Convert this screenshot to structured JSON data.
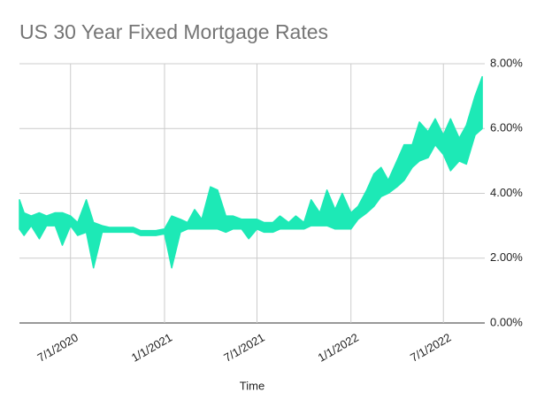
{
  "chart_data": {
    "type": "range-area",
    "title": "US 30 Year Fixed Mortgage Rates",
    "x_label": "Time",
    "x": [
      "2020-03-23",
      "2020-04-01",
      "2020-04-15",
      "2020-05-01",
      "2020-05-15",
      "2020-06-01",
      "2020-06-15",
      "2020-07-01",
      "2020-07-15",
      "2020-08-01",
      "2020-08-15",
      "2020-09-01",
      "2020-09-15",
      "2020-10-01",
      "2020-10-15",
      "2020-11-01",
      "2020-11-15",
      "2020-12-01",
      "2020-12-15",
      "2021-01-01",
      "2021-01-15",
      "2021-02-01",
      "2021-02-15",
      "2021-03-01",
      "2021-03-15",
      "2021-04-01",
      "2021-04-15",
      "2021-05-01",
      "2021-05-15",
      "2021-06-01",
      "2021-06-15",
      "2021-07-01",
      "2021-07-15",
      "2021-08-01",
      "2021-08-15",
      "2021-09-01",
      "2021-09-15",
      "2021-10-01",
      "2021-10-15",
      "2021-11-01",
      "2021-11-15",
      "2021-12-01",
      "2021-12-15",
      "2022-01-01",
      "2022-01-15",
      "2022-02-01",
      "2022-02-15",
      "2022-03-01",
      "2022-03-15",
      "2022-04-01",
      "2022-04-15",
      "2022-05-01",
      "2022-05-15",
      "2022-06-01",
      "2022-06-15",
      "2022-07-01",
      "2022-07-15",
      "2022-08-01",
      "2022-08-15",
      "2022-09-01",
      "2022-09-15"
    ],
    "series": [
      {
        "color": "#1de9b6",
        "values": [
          2.9,
          2.7,
          3.0,
          2.6,
          3.0,
          3.0,
          2.4,
          3.0,
          2.7,
          2.8,
          1.7,
          2.8,
          2.8,
          2.8,
          2.8,
          2.8,
          2.7,
          2.7,
          2.7,
          2.75,
          1.7,
          2.8,
          2.9,
          2.9,
          2.9,
          2.9,
          2.9,
          2.8,
          2.9,
          2.9,
          2.6,
          2.9,
          2.8,
          2.8,
          2.9,
          2.9,
          2.9,
          2.9,
          3.0,
          3.0,
          3.0,
          2.9,
          2.9,
          2.9,
          3.2,
          3.4,
          3.6,
          3.9,
          4.0,
          4.2,
          4.4,
          4.8,
          5.0,
          5.1,
          5.5,
          5.2,
          4.7,
          5.0,
          4.9,
          5.8,
          6.0
        ]
      },
      {
        "color": "#1de9b6",
        "values": [
          3.8,
          3.4,
          3.3,
          3.4,
          3.3,
          3.4,
          3.4,
          3.3,
          3.1,
          3.8,
          3.1,
          3.0,
          2.95,
          2.95,
          2.95,
          2.95,
          2.85,
          2.85,
          2.85,
          2.9,
          3.3,
          3.2,
          3.1,
          3.5,
          3.2,
          4.2,
          4.1,
          3.3,
          3.3,
          3.2,
          3.2,
          3.2,
          3.1,
          3.1,
          3.3,
          3.1,
          3.3,
          3.1,
          3.8,
          3.4,
          4.1,
          3.5,
          4.0,
          3.4,
          3.6,
          4.1,
          4.6,
          4.8,
          4.4,
          5.0,
          5.5,
          5.5,
          6.2,
          5.9,
          6.3,
          5.8,
          6.3,
          5.7,
          6.1,
          7.0,
          7.6
        ]
      }
    ],
    "xlim": [
      "2020-03-23",
      "2022-09-20"
    ],
    "xticks": [
      {
        "value": "2020-07-01",
        "label": "7/1/2020"
      },
      {
        "value": "2021-01-01",
        "label": "1/1/2021"
      },
      {
        "value": "2021-07-01",
        "label": "7/1/2021"
      },
      {
        "value": "2022-01-01",
        "label": "1/1/2022"
      },
      {
        "value": "2022-07-01",
        "label": "7/1/2022"
      }
    ],
    "ylim": [
      0,
      8
    ],
    "yticks": [
      {
        "value": 0,
        "label": "0.00%"
      },
      {
        "value": 2,
        "label": "2.00%"
      },
      {
        "value": 4,
        "label": "4.00%"
      },
      {
        "value": 6,
        "label": "6.00%"
      },
      {
        "value": 8,
        "label": "8.00%"
      }
    ],
    "grid": true,
    "y_axis_side": "right"
  }
}
